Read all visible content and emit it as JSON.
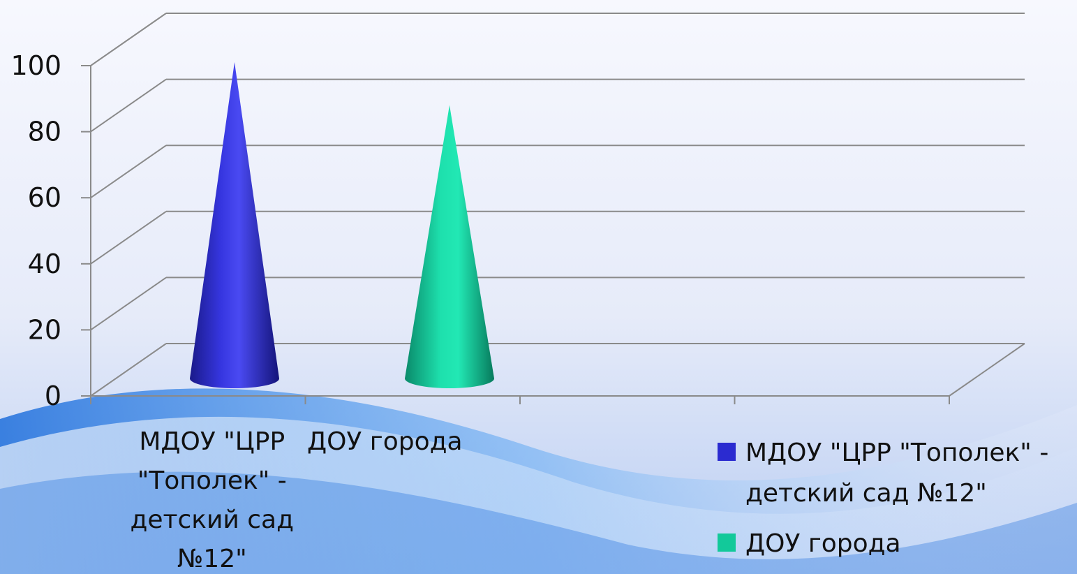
{
  "chart_data": {
    "type": "bar",
    "bar_shape": "cone-3d",
    "categories": [
      "МДОУ \"ЦРР \"Тополек\" - детский сад №12\"",
      "ДОУ города"
    ],
    "category_label_lines": [
      [
        "МДОУ \"ЦРР",
        "\"Тополек\" -",
        "детский сад",
        "№12\""
      ],
      [
        "ДОУ города"
      ]
    ],
    "series": [
      {
        "name": "МДОУ \"ЦРР \"Тополек\" - детский сад №12\"",
        "values": [
          100,
          null
        ],
        "color": "#2b2bd0"
      },
      {
        "name": "ДОУ города",
        "values": [
          null,
          87
        ],
        "color": "#12c99a"
      }
    ],
    "legend_label_lines": [
      [
        "МДОУ \"ЦРР \"Тополек\" -",
        "детский сад №12\""
      ],
      [
        "ДОУ города"
      ]
    ],
    "ylim": [
      0,
      120
    ],
    "yticks": [
      0,
      20,
      40,
      60,
      80,
      100
    ],
    "grid": true,
    "legend_position": "bottom-right",
    "title": "",
    "xlabel": "",
    "ylabel": ""
  },
  "colors": {
    "gridline": "#8a8a8a",
    "background_top": "#f4f6fd",
    "background_bottom": "#c7d6f4",
    "wave": "#2d7fe6"
  }
}
